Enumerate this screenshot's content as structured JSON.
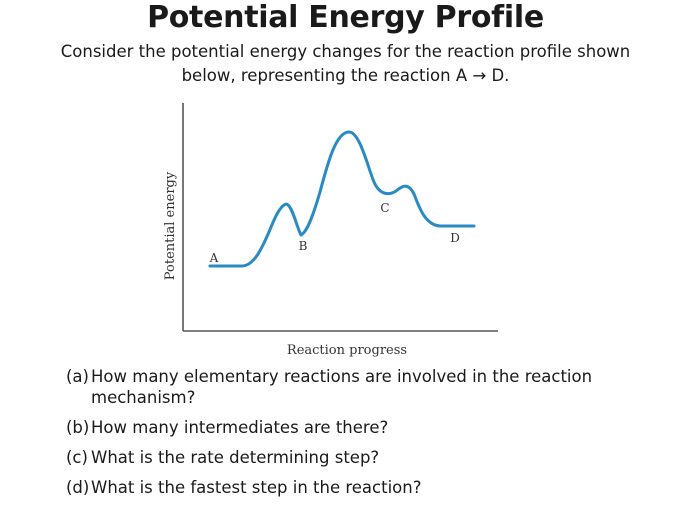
{
  "title": "Potential Energy Profile",
  "intro": {
    "line1": "Consider the potential energy changes for the reaction profile shown",
    "line2": "below, representing the reaction A → D."
  },
  "figure": {
    "ylabel": "Potential energy",
    "xlabel": "Reaction progress",
    "point_labels": [
      "A",
      "B",
      "C",
      "D"
    ],
    "curve_color": "#2a8ac4",
    "axis_color": "#555555"
  },
  "questions": [
    {
      "label": "(a)",
      "text_line1": "How many elementary reactions are involved in the reaction",
      "text_line2": "mechanism?"
    },
    {
      "label": "(b)",
      "text_line1": "How many intermediates are there?"
    },
    {
      "label": "(c)",
      "text_line1": "What is the rate determining step?"
    },
    {
      "label": "(d)",
      "text_line1": "What is the fastest step in the reaction?"
    }
  ]
}
